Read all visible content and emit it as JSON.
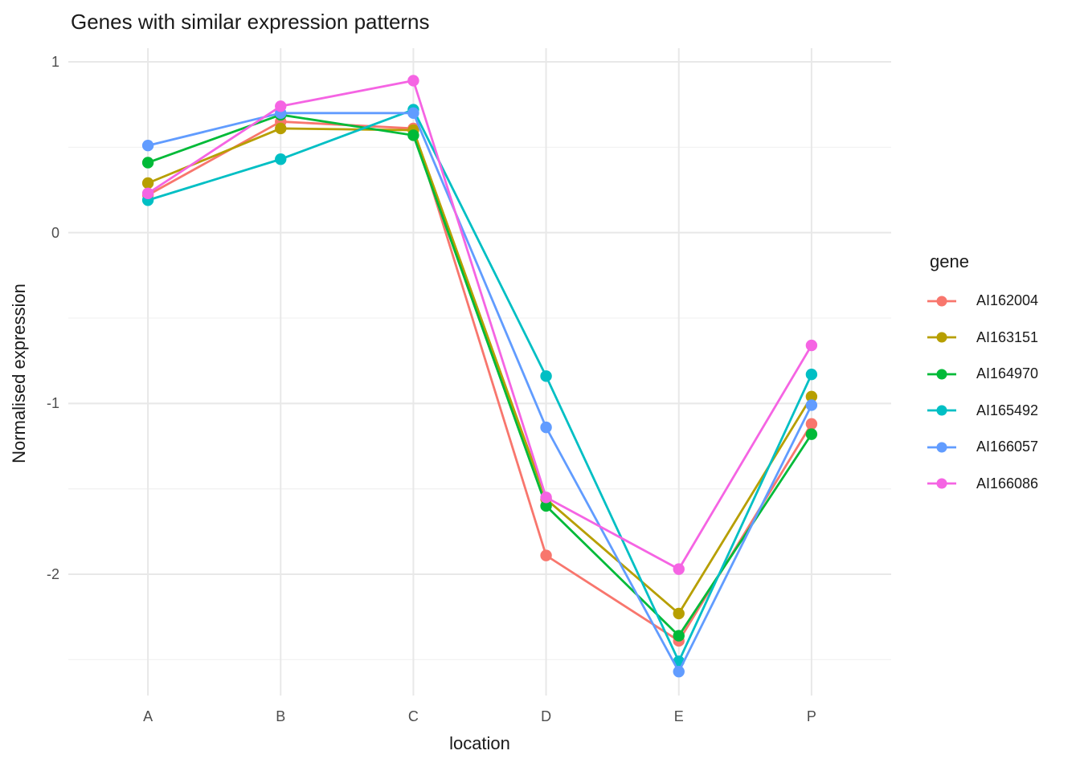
{
  "page": {
    "background_color": "#FFFFFF",
    "text_color": "#1a1a1a",
    "tick_label_color": "#4d4d4d",
    "grid_major_color": "#E8E8E8",
    "grid_minor_color": "#F2F2F2"
  },
  "chart_data": {
    "type": "line",
    "title": "Genes with similar expression patterns",
    "xlabel": "location",
    "ylabel": "Normalised expression",
    "categories": [
      "A",
      "B",
      "C",
      "D",
      "E",
      "P"
    ],
    "y_ticks": [
      1,
      0,
      -1,
      -2
    ],
    "y_minor_ticks": [
      0.5,
      -0.5,
      -1.5,
      -2.5
    ],
    "ylim": [
      -2.71,
      1.08
    ],
    "grid": "major horizontal + vertical, minor horizontal only",
    "legend_position": "right",
    "legend_title": "gene",
    "marker": "circle",
    "series": [
      {
        "name": "AI162004",
        "color": "#F8766D",
        "values": [
          0.22,
          0.65,
          0.61,
          -1.89,
          -2.39,
          -1.12
        ]
      },
      {
        "name": "AI163151",
        "color": "#B79F00",
        "values": [
          0.29,
          0.61,
          0.6,
          -1.56,
          -2.23,
          -0.96
        ]
      },
      {
        "name": "AI164970",
        "color": "#00BA38",
        "values": [
          0.41,
          0.69,
          0.57,
          -1.6,
          -2.36,
          -1.18
        ]
      },
      {
        "name": "AI165492",
        "color": "#00BFC4",
        "values": [
          0.19,
          0.43,
          0.72,
          -0.84,
          -2.51,
          -0.83
        ]
      },
      {
        "name": "AI166057",
        "color": "#619CFF",
        "values": [
          0.51,
          0.7,
          0.7,
          -1.14,
          -2.57,
          -1.01
        ]
      },
      {
        "name": "AI166086",
        "color": "#F564E3",
        "values": [
          0.23,
          0.74,
          0.89,
          -1.55,
          -1.97,
          -0.66
        ]
      }
    ]
  }
}
